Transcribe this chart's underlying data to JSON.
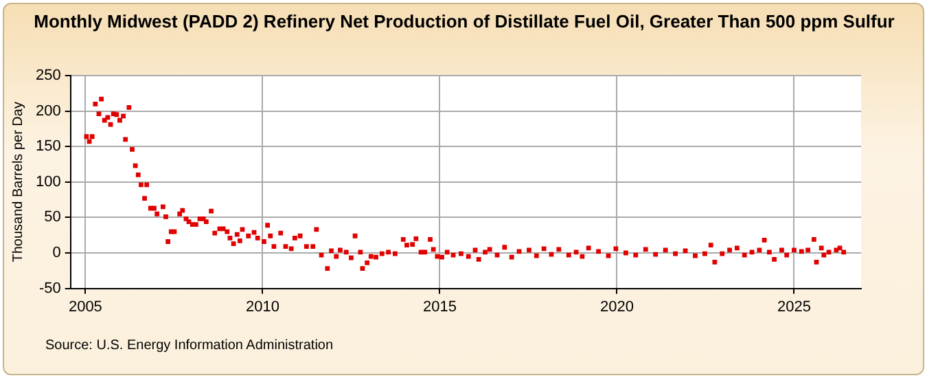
{
  "chart_data": {
    "type": "scatter",
    "title": "Monthly Midwest (PADD 2) Refinery Net Production of Distillate Fuel Oil, Greater Than 500 ppm Sulfur",
    "ylabel": "Thousand Barrels per Day",
    "annotations": [
      "Source: U.S. Energy Information Administration"
    ],
    "series": [
      {
        "color": "#e00000",
        "x": [
          2005.03,
          2005.11,
          2005.19,
          2005.28,
          2005.38,
          2005.45,
          2005.54,
          2005.63,
          2005.71,
          2005.79,
          2005.88,
          2005.97,
          2006.07,
          2006.13,
          2006.23,
          2006.32,
          2006.41,
          2006.49,
          2006.57,
          2006.67,
          2006.73,
          2006.84,
          2006.94,
          2007.02,
          2007.19,
          2007.27,
          2007.33,
          2007.42,
          2007.51,
          2007.66,
          2007.74,
          2007.84,
          2007.92,
          2008.02,
          2008.12,
          2008.23,
          2008.33,
          2008.41,
          2008.55,
          2008.65,
          2008.79,
          2008.89,
          2009.0,
          2009.08,
          2009.18,
          2009.28,
          2009.36,
          2009.43,
          2009.6,
          2009.76,
          2009.86,
          2010.04,
          2010.14,
          2010.22,
          2010.32,
          2010.51,
          2010.65,
          2010.81,
          2010.91,
          2011.06,
          2011.24,
          2011.42,
          2011.52,
          2011.66,
          2011.83,
          2011.94,
          2012.08,
          2012.19,
          2012.36,
          2012.5,
          2012.61,
          2012.76,
          2012.82,
          2012.95,
          2013.06,
          2013.2,
          2013.37,
          2013.55,
          2013.74,
          2013.97,
          2014.07,
          2014.23,
          2014.33,
          2014.47,
          2014.58,
          2014.73,
          2014.82,
          2014.93,
          2015.06,
          2015.21,
          2015.38,
          2015.6,
          2015.81,
          2016.0,
          2016.1,
          2016.28,
          2016.41,
          2016.62,
          2016.83,
          2017.03,
          2017.24,
          2017.52,
          2017.73,
          2017.94,
          2018.15,
          2018.36,
          2018.64,
          2018.85,
          2019.02,
          2019.2,
          2019.48,
          2019.76,
          2019.97,
          2020.25,
          2020.53,
          2020.81,
          2021.09,
          2021.37,
          2021.65,
          2021.93,
          2022.21,
          2022.48,
          2022.65,
          2022.76,
          2022.97,
          2023.18,
          2023.39,
          2023.6,
          2023.81,
          2024.02,
          2024.16,
          2024.3,
          2024.44,
          2024.65,
          2024.79,
          2025.0,
          2025.21,
          2025.39,
          2025.56,
          2025.63,
          2025.77,
          2025.84,
          2025.98,
          2026.19,
          2026.29,
          2026.4
        ],
        "values": [
          164,
          157,
          164,
          210,
          196,
          217,
          187,
          191,
          181,
          196,
          195,
          187,
          193,
          160,
          205,
          146,
          123,
          110,
          96,
          77,
          96,
          63,
          63,
          55,
          65,
          51,
          16,
          30,
          30,
          55,
          60,
          48,
          44,
          40,
          40,
          48,
          48,
          44,
          59,
          28,
          34,
          34,
          30,
          21,
          13,
          26,
          17,
          33,
          24,
          29,
          21,
          16,
          39,
          24,
          9,
          28,
          9,
          6,
          21,
          24,
          9,
          9,
          33,
          -3,
          -22,
          3,
          -5,
          4,
          1,
          -7,
          24,
          1,
          -22,
          -14,
          -5,
          -6,
          -1,
          1,
          -1,
          19,
          11,
          12,
          20,
          1,
          1,
          19,
          5,
          -5,
          -6,
          1,
          -3,
          -1,
          -5,
          4,
          -9,
          1,
          5,
          -3,
          8,
          -6,
          2,
          4,
          -4,
          6,
          -2,
          5,
          -3,
          1,
          -5,
          7,
          2,
          -4,
          6,
          0,
          -3,
          5,
          -2,
          4,
          -1,
          3,
          -4,
          -1,
          11,
          -13,
          -1,
          4,
          7,
          -3,
          1,
          4,
          18,
          1,
          -9,
          4,
          -3,
          4,
          2,
          4,
          19,
          -13,
          7,
          -3,
          1,
          4,
          7,
          1
        ]
      }
    ],
    "xlim": [
      2004.58,
      2026.89
    ],
    "xticks": [
      2005,
      2010,
      2015,
      2020,
      2025
    ],
    "ylim": [
      -50,
      250
    ],
    "yticks": [
      -50,
      0,
      50,
      100,
      150,
      200,
      250
    ],
    "grid": true,
    "legend": false,
    "marker": "square"
  }
}
